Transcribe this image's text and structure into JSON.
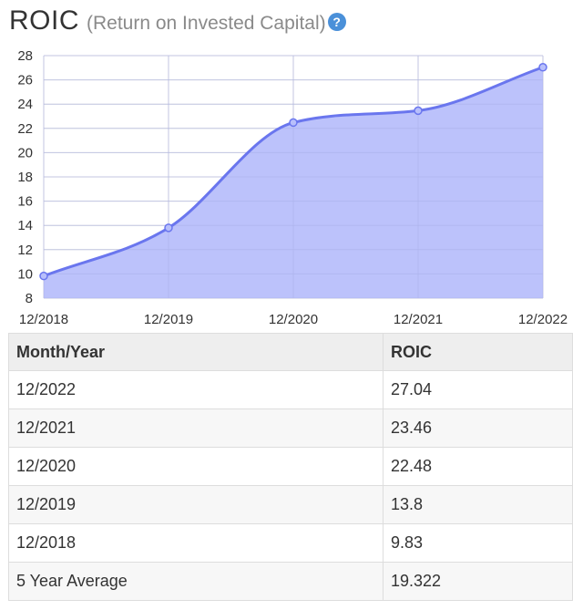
{
  "header": {
    "title": "ROIC",
    "subtitle": "(Return on Invested Capital)",
    "help_icon": "question-circle-icon",
    "help_glyph": "?"
  },
  "chart_data": {
    "type": "area",
    "x": [
      "12/2018",
      "12/2019",
      "12/2020",
      "12/2021",
      "12/2022"
    ],
    "series": [
      {
        "values": [
          9.83,
          13.8,
          22.48,
          23.46,
          27.04
        ]
      }
    ],
    "ylim": [
      8,
      28
    ],
    "yticks": [
      8,
      10,
      12,
      14,
      16,
      18,
      20,
      22,
      24,
      26,
      28
    ],
    "grid": true,
    "line_color": "#6a76ee",
    "fill_color": "#b8bffb",
    "point_color": "#6a76ee"
  },
  "table": {
    "headers": [
      "Month/Year",
      "ROIC"
    ],
    "rows": [
      [
        "12/2022",
        "27.04"
      ],
      [
        "12/2021",
        "23.46"
      ],
      [
        "12/2020",
        "22.48"
      ],
      [
        "12/2019",
        "13.8"
      ],
      [
        "12/2018",
        "9.83"
      ],
      [
        "5 Year Average",
        "19.322"
      ]
    ]
  }
}
